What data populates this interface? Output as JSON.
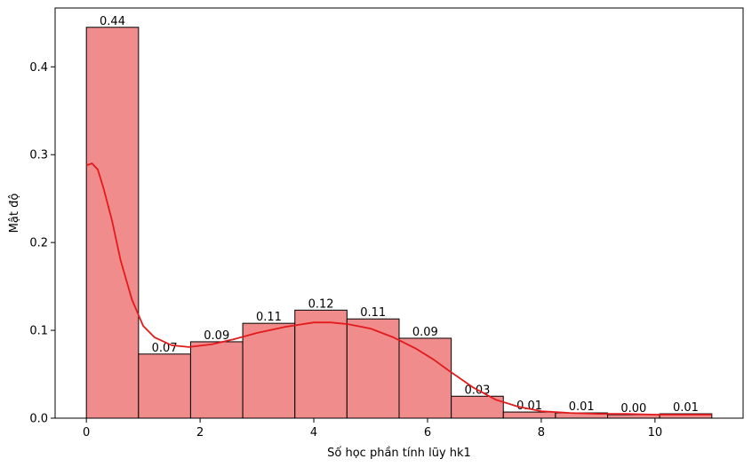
{
  "chart_data": {
    "type": "bar",
    "subtype": "histogram with density curve",
    "title": "",
    "xlabel": "Số học phần tính lũy hk1",
    "ylabel": "Mật độ",
    "xlim": [
      -0.55,
      11.55
    ],
    "ylim": [
      0,
      0.467
    ],
    "xticks": [
      0,
      2,
      4,
      6,
      8,
      10
    ],
    "yticks": [
      0.0,
      0.1,
      0.2,
      0.3,
      0.4
    ],
    "ytick_labels": [
      "0.0",
      "0.1",
      "0.2",
      "0.3",
      "0.4"
    ],
    "bin_edges": [
      0,
      0.917,
      1.833,
      2.75,
      3.667,
      4.583,
      5.5,
      6.417,
      7.333,
      8.25,
      9.167,
      10.083,
      11.0
    ],
    "values": [
      0.445,
      0.073,
      0.087,
      0.108,
      0.123,
      0.113,
      0.091,
      0.025,
      0.007,
      0.006,
      0.004,
      0.005
    ],
    "value_labels": [
      "0.44",
      "0.07",
      "0.09",
      "0.11",
      "0.12",
      "0.11",
      "0.09",
      "0.03",
      "0.01",
      "0.01",
      "0.00",
      "0.01"
    ],
    "kde": {
      "x": [
        0,
        0.1,
        0.2,
        0.3,
        0.45,
        0.6,
        0.8,
        1.0,
        1.2,
        1.5,
        1.8,
        2.2,
        2.6,
        3.0,
        3.5,
        4.0,
        4.3,
        4.6,
        5.0,
        5.4,
        5.8,
        6.1,
        6.4,
        6.8,
        7.2,
        7.6,
        8.0,
        8.5,
        9.0,
        9.5,
        10.0,
        10.5,
        11.0
      ],
      "y": [
        0.288,
        0.29,
        0.283,
        0.262,
        0.225,
        0.18,
        0.135,
        0.105,
        0.092,
        0.083,
        0.081,
        0.084,
        0.09,
        0.097,
        0.104,
        0.109,
        0.109,
        0.107,
        0.102,
        0.092,
        0.079,
        0.067,
        0.053,
        0.035,
        0.021,
        0.013,
        0.008,
        0.006,
        0.005,
        0.005,
        0.004,
        0.004,
        0.004
      ]
    },
    "grid": false,
    "legend": "none",
    "colors": {
      "bar_fill": "#f08c8c",
      "bar_edge": "#000000",
      "kde_line": "#e31a1c",
      "axes": "#000000"
    }
  }
}
